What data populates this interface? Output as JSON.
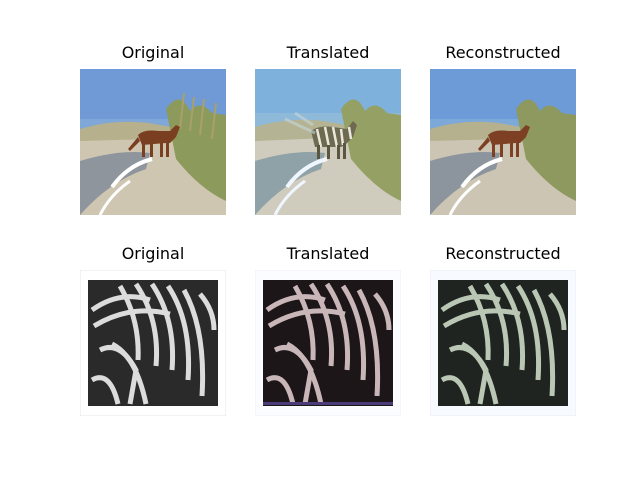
{
  "figure": {
    "rows": [
      {
        "panels": [
          {
            "title": "Original",
            "scene": "horse-original"
          },
          {
            "title": "Translated",
            "scene": "horse-translated"
          },
          {
            "title": "Reconstructed",
            "scene": "horse-reconstructed"
          }
        ]
      },
      {
        "panels": [
          {
            "title": "Original",
            "scene": "zebra-original"
          },
          {
            "title": "Translated",
            "scene": "zebra-translated"
          },
          {
            "title": "Reconstructed",
            "scene": "zebra-reconstructed"
          }
        ]
      }
    ]
  }
}
